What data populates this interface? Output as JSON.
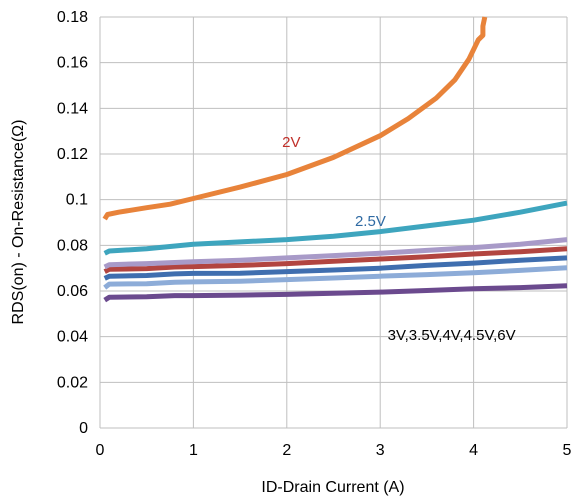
{
  "chart_data": {
    "type": "line",
    "title": "",
    "xlabel": "ID-Drain Current (A)",
    "ylabel": "RDS(on) - On-Resistance(Ω)",
    "xlim": [
      0,
      5
    ],
    "ylim": [
      0,
      0.18
    ],
    "x_ticks": [
      "0",
      "1",
      "2",
      "3",
      "4",
      "5"
    ],
    "y_ticks": [
      "0",
      "0.02",
      "0.04",
      "0.06",
      "0.08",
      "0.1",
      "0.12",
      "0.14",
      "0.16",
      "0.18"
    ],
    "grid": true,
    "legend": "none",
    "series": [
      {
        "color": "#E8833A",
        "points": [
          [
            0.05,
            0.0915
          ],
          [
            0.08,
            0.0935
          ],
          [
            0.2,
            0.0945
          ],
          [
            0.5,
            0.0965
          ],
          [
            0.75,
            0.098
          ],
          [
            0.8,
            0.0985
          ],
          [
            1.0,
            0.1005
          ],
          [
            1.5,
            0.1055
          ],
          [
            2.0,
            0.111
          ],
          [
            2.5,
            0.1185
          ],
          [
            3.0,
            0.128
          ],
          [
            3.3,
            0.1355
          ],
          [
            3.6,
            0.1445
          ],
          [
            3.8,
            0.1525
          ],
          [
            3.95,
            0.1615
          ],
          [
            4.05,
            0.17
          ],
          [
            4.1,
            0.172
          ],
          [
            4.1,
            0.176
          ],
          [
            4.12,
            0.18
          ]
        ]
      },
      {
        "color": "#3EA5BE",
        "points": [
          [
            0.05,
            0.0765
          ],
          [
            0.1,
            0.0775
          ],
          [
            0.5,
            0.0785
          ],
          [
            1.0,
            0.0805
          ],
          [
            1.5,
            0.0815
          ],
          [
            2.0,
            0.0825
          ],
          [
            2.5,
            0.084
          ],
          [
            3.0,
            0.086
          ],
          [
            3.5,
            0.0885
          ],
          [
            4.0,
            0.091
          ],
          [
            4.5,
            0.0945
          ],
          [
            5.0,
            0.0985
          ]
        ]
      },
      {
        "color": "#A89AC8",
        "points": [
          [
            0.05,
            0.0705
          ],
          [
            0.1,
            0.0715
          ],
          [
            0.5,
            0.072
          ],
          [
            0.8,
            0.0725
          ],
          [
            1.0,
            0.0728
          ],
          [
            1.5,
            0.0735
          ],
          [
            2.0,
            0.0745
          ],
          [
            2.5,
            0.0755
          ],
          [
            3.0,
            0.0765
          ],
          [
            3.5,
            0.0778
          ],
          [
            4.0,
            0.079
          ],
          [
            4.5,
            0.0805
          ],
          [
            5.0,
            0.0825
          ]
        ]
      },
      {
        "color": "#B24540",
        "points": [
          [
            0.05,
            0.0685
          ],
          [
            0.1,
            0.0695
          ],
          [
            0.5,
            0.0698
          ],
          [
            0.8,
            0.0705
          ],
          [
            1.0,
            0.0707
          ],
          [
            1.5,
            0.0712
          ],
          [
            2.0,
            0.072
          ],
          [
            2.5,
            0.073
          ],
          [
            3.0,
            0.074
          ],
          [
            3.5,
            0.075
          ],
          [
            4.0,
            0.0762
          ],
          [
            4.5,
            0.0772
          ],
          [
            5.0,
            0.0785
          ]
        ]
      },
      {
        "color": "#3F6EAF",
        "points": [
          [
            0.05,
            0.0655
          ],
          [
            0.1,
            0.0665
          ],
          [
            0.5,
            0.0668
          ],
          [
            0.8,
            0.0675
          ],
          [
            1.0,
            0.0677
          ],
          [
            1.5,
            0.0678
          ],
          [
            2.0,
            0.0685
          ],
          [
            2.5,
            0.0692
          ],
          [
            3.0,
            0.07
          ],
          [
            3.5,
            0.0712
          ],
          [
            4.0,
            0.0722
          ],
          [
            4.5,
            0.0735
          ],
          [
            5.0,
            0.0745
          ]
        ]
      },
      {
        "color": "#8DACD8",
        "points": [
          [
            0.05,
            0.0615
          ],
          [
            0.1,
            0.063
          ],
          [
            0.5,
            0.0632
          ],
          [
            0.8,
            0.0638
          ],
          [
            1.0,
            0.064
          ],
          [
            1.5,
            0.0643
          ],
          [
            2.0,
            0.065
          ],
          [
            2.5,
            0.0657
          ],
          [
            3.0,
            0.0665
          ],
          [
            3.5,
            0.0672
          ],
          [
            4.0,
            0.068
          ],
          [
            4.5,
            0.069
          ],
          [
            5.0,
            0.0702
          ]
        ]
      },
      {
        "color": "#6B4A8E",
        "points": [
          [
            0.05,
            0.056
          ],
          [
            0.1,
            0.0573
          ],
          [
            0.5,
            0.0575
          ],
          [
            0.8,
            0.058
          ],
          [
            1.0,
            0.058
          ],
          [
            1.5,
            0.0582
          ],
          [
            2.0,
            0.0585
          ],
          [
            2.5,
            0.059
          ],
          [
            3.0,
            0.0595
          ],
          [
            3.5,
            0.0602
          ],
          [
            4.0,
            0.061
          ],
          [
            4.5,
            0.0615
          ],
          [
            5.0,
            0.0623
          ]
        ]
      }
    ],
    "annotations": [
      {
        "text": "2V",
        "x": 1.95,
        "y": 0.123,
        "color": "#C0302A"
      },
      {
        "text": "2.5V",
        "x": 2.73,
        "y": 0.0885,
        "color": "#2F6AA3"
      },
      {
        "text": "3V,3.5V,4V,4.5V,6V",
        "x": 3.08,
        "y": 0.0385,
        "color": "#000000"
      }
    ]
  }
}
